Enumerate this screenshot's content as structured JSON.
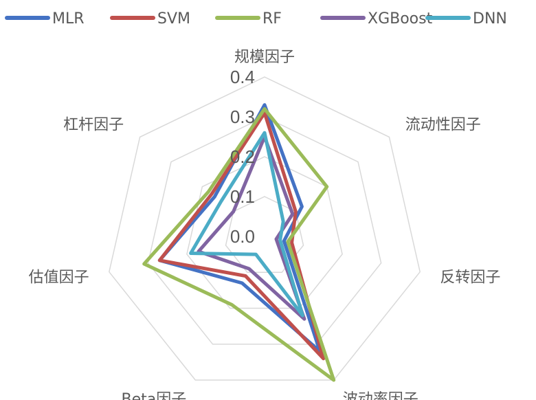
{
  "chart_data": {
    "type": "radar",
    "axes": [
      "规模因子",
      "流动性因子",
      "反转因子",
      "波动率因子",
      "Beta因子",
      "估值因子",
      "杠杆因子"
    ],
    "rlim": [
      0.0,
      0.4
    ],
    "ticks": [
      0.0,
      0.1,
      0.2,
      0.3,
      0.4
    ],
    "tick_labels": [
      "0.0",
      "0.1",
      "0.2",
      "0.3",
      "0.4"
    ],
    "grid": true,
    "legend_position": "top",
    "series": [
      {
        "name": "MLR",
        "color": "#4472C4",
        "values": [
          0.33,
          0.12,
          0.05,
          0.32,
          0.13,
          0.27,
          0.16
        ]
      },
      {
        "name": "SVM",
        "color": "#C0504D",
        "values": [
          0.31,
          0.1,
          0.07,
          0.34,
          0.11,
          0.27,
          0.17
        ]
      },
      {
        "name": "RF",
        "color": "#9BBB59",
        "values": [
          0.32,
          0.2,
          0.06,
          0.4,
          0.19,
          0.31,
          0.18
        ]
      },
      {
        "name": "XGBoost",
        "color": "#8064A2",
        "values": [
          0.25,
          0.09,
          0.03,
          0.23,
          0.09,
          0.17,
          0.1
        ]
      },
      {
        "name": "DNN",
        "color": "#4BACC6",
        "values": [
          0.26,
          0.06,
          0.04,
          0.22,
          0.05,
          0.19,
          0.14
        ]
      }
    ]
  }
}
